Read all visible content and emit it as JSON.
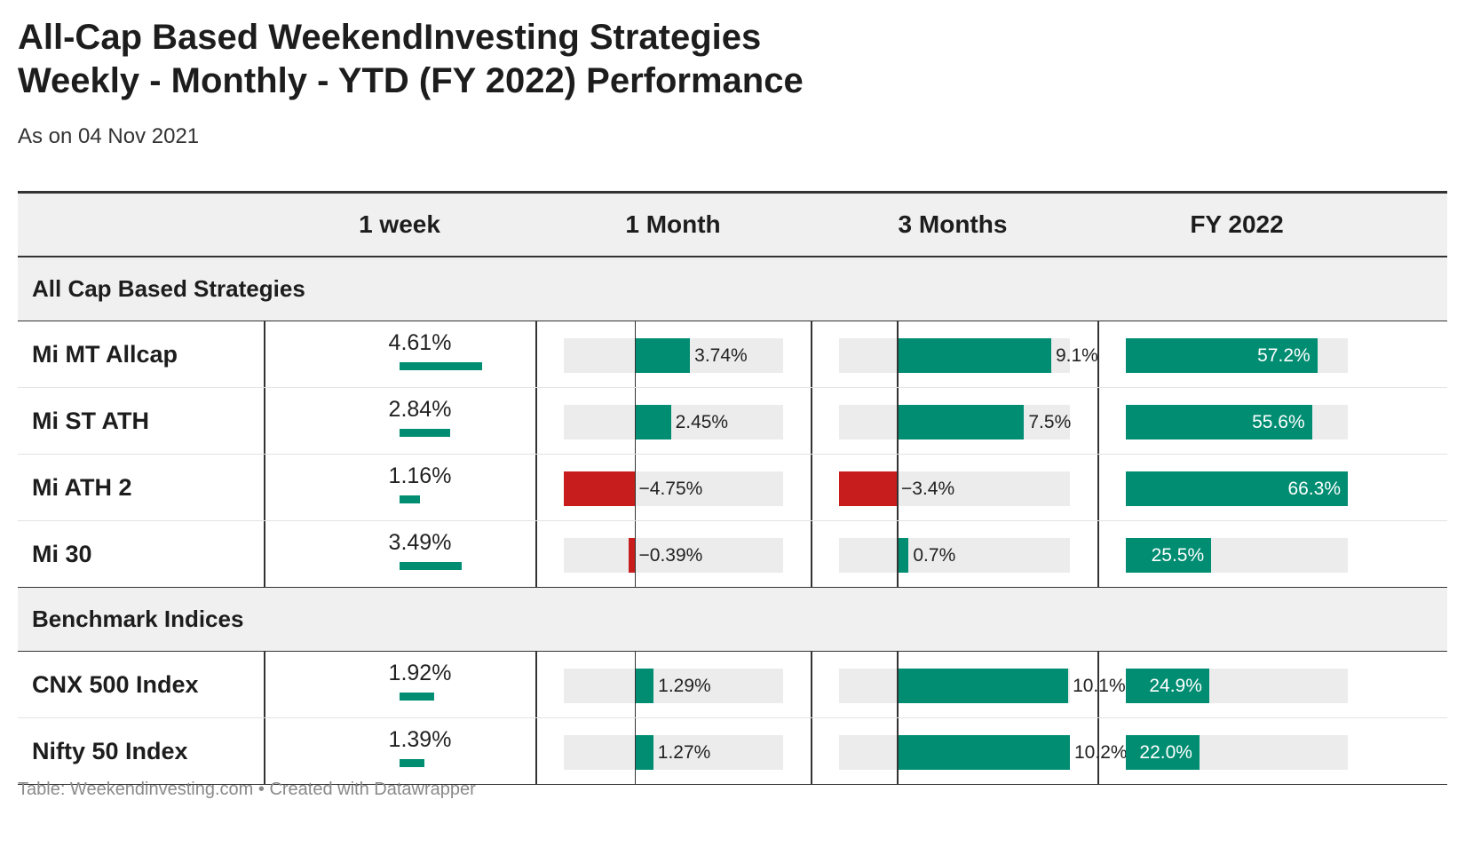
{
  "title": {
    "line1": "All-Cap Based WeekendInvesting Strategies",
    "line2": "Weekly - Monthly - YTD (FY 2022)  Performance"
  },
  "subtitle": "As on 04 Nov 2021",
  "footer": "Table: Weekendinvesting.com • Created with Datawrapper",
  "colors": {
    "positive": "#008d72",
    "negative": "#c71e1d",
    "track": "#ececec"
  },
  "chart_data": {
    "type": "table",
    "columns": [
      "",
      "1 week",
      "1 Month",
      "3 Months",
      "FY 2022"
    ],
    "groups": [
      {
        "label": "All Cap Based Strategies",
        "rows": [
          {
            "name": "Mi MT Allcap",
            "week": 4.61,
            "week_label": "4.61%",
            "month": 3.74,
            "month_label": "3.74%",
            "three_months": 9.1,
            "three_months_label": "9.1%",
            "fy": 57.2,
            "fy_label": "57.2%"
          },
          {
            "name": "Mi ST ATH",
            "week": 2.84,
            "week_label": "2.84%",
            "month": 2.45,
            "month_label": "2.45%",
            "three_months": 7.5,
            "three_months_label": "7.5%",
            "fy": 55.6,
            "fy_label": "55.6%"
          },
          {
            "name": "Mi ATH 2",
            "week": 1.16,
            "week_label": "1.16%",
            "month": -4.75,
            "month_label": "−4.75%",
            "three_months": -3.4,
            "three_months_label": "−3.4%",
            "fy": 66.3,
            "fy_label": "66.3%"
          },
          {
            "name": "Mi 30",
            "week": 3.49,
            "week_label": "3.49%",
            "month": -0.39,
            "month_label": "−0.39%",
            "three_months": 0.7,
            "three_months_label": "0.7%",
            "fy": 25.5,
            "fy_label": "25.5%"
          }
        ]
      },
      {
        "label": "Benchmark Indices",
        "rows": [
          {
            "name": "CNX 500 Index",
            "week": 1.92,
            "week_label": "1.92%",
            "month": 1.29,
            "month_label": "1.29%",
            "three_months": 10.1,
            "three_months_label": "10.1%",
            "fy": 24.9,
            "fy_label": "24.9%"
          },
          {
            "name": "Nifty 50 Index",
            "week": 1.39,
            "week_label": "1.39%",
            "month": 1.27,
            "month_label": "1.27%",
            "three_months": 10.2,
            "three_months_label": "10.2%",
            "fy": 22.0,
            "fy_label": "22.0%"
          }
        ]
      }
    ],
    "scales": {
      "week": [
        0,
        4.61
      ],
      "month": [
        -4.75,
        10
      ],
      "three_months": [
        -3.4,
        10.2
      ],
      "fy": [
        0,
        66.3
      ]
    }
  }
}
